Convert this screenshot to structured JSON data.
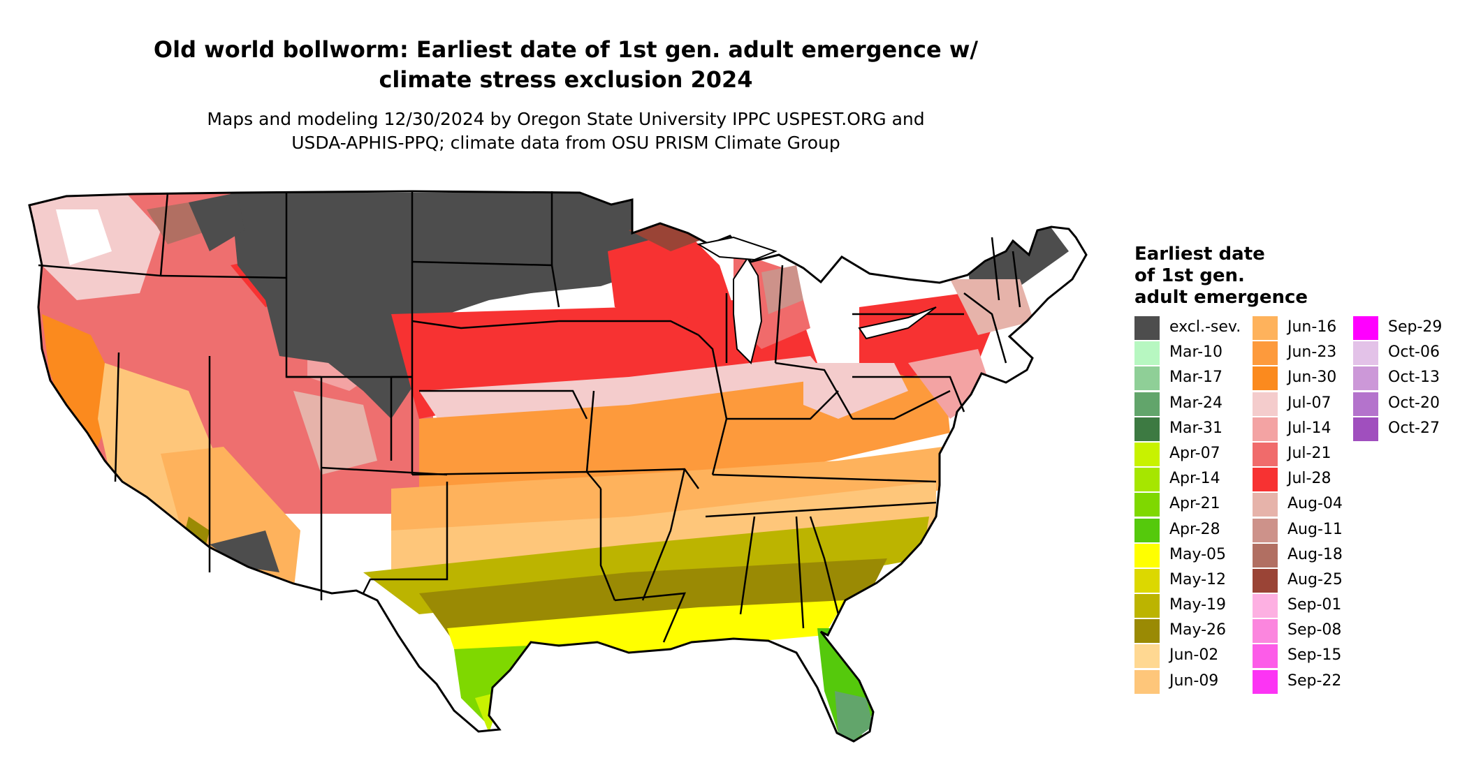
{
  "title_line1": "Old world bollworm: Earliest date of 1st gen. adult emergence w/",
  "title_line2": "climate stress exclusion 2024",
  "subtitle_line1": "Maps and modeling 12/30/2024 by Oregon State University IPPC USPEST.ORG and",
  "subtitle_line2": "USDA-APHIS-PPQ; climate data from OSU PRISM Climate Group",
  "legend": {
    "title_lines": [
      "Earliest date",
      "of 1st gen.",
      "adult emergence"
    ],
    "columns": [
      [
        {
          "label": "excl.-sev.",
          "color": "#4d4d4d"
        },
        {
          "label": "Mar-10",
          "color": "#b7f7c1"
        },
        {
          "label": "Mar-17",
          "color": "#8fcf97"
        },
        {
          "label": "Mar-24",
          "color": "#62a56b"
        },
        {
          "label": "Mar-31",
          "color": "#3d7a42"
        },
        {
          "label": "Apr-07",
          "color": "#c8f200"
        },
        {
          "label": "Apr-14",
          "color": "#a6e600"
        },
        {
          "label": "Apr-21",
          "color": "#7fd800"
        },
        {
          "label": "Apr-28",
          "color": "#55c90c"
        },
        {
          "label": "May-05",
          "color": "#ffff00"
        },
        {
          "label": "May-12",
          "color": "#dcd800"
        },
        {
          "label": "May-19",
          "color": "#bcb400"
        },
        {
          "label": "May-26",
          "color": "#9a8a04"
        },
        {
          "label": "Jun-02",
          "color": "#ffd892"
        },
        {
          "label": "Jun-09",
          "color": "#fec67a"
        }
      ],
      [
        {
          "label": "Jun-16",
          "color": "#feb25c"
        },
        {
          "label": "Jun-23",
          "color": "#fd9a3c"
        },
        {
          "label": "Jun-30",
          "color": "#fb8a1e"
        },
        {
          "label": "Jul-07",
          "color": "#f4cccc"
        },
        {
          "label": "Jul-14",
          "color": "#f3a3a3"
        },
        {
          "label": "Jul-21",
          "color": "#f06b6b"
        },
        {
          "label": "Jul-28",
          "color": "#f73232"
        },
        {
          "label": "Aug-04",
          "color": "#e6b3aa"
        },
        {
          "label": "Aug-11",
          "color": "#cd928a"
        },
        {
          "label": "Aug-18",
          "color": "#b16f62"
        },
        {
          "label": "Aug-25",
          "color": "#9a4436"
        },
        {
          "label": "Sep-01",
          "color": "#fdb0e2"
        },
        {
          "label": "Sep-08",
          "color": "#fb86de"
        },
        {
          "label": "Sep-15",
          "color": "#fc5ce8"
        },
        {
          "label": "Sep-22",
          "color": "#fc34f4"
        }
      ],
      [
        {
          "label": "Sep-29",
          "color": "#ff00ff"
        },
        {
          "label": "Oct-06",
          "color": "#e3c2e8"
        },
        {
          "label": "Oct-13",
          "color": "#cc98d8"
        },
        {
          "label": "Oct-20",
          "color": "#b473cc"
        },
        {
          "label": "Oct-27",
          "color": "#a04fbe"
        }
      ]
    ]
  }
}
